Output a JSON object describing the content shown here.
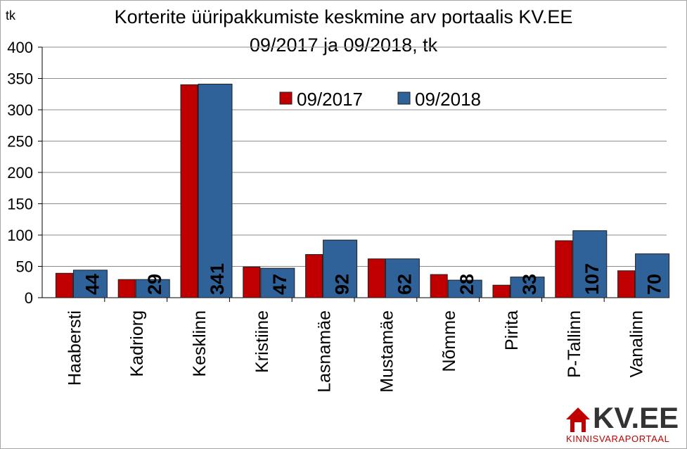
{
  "chart_data": {
    "type": "bar",
    "title": "Korterite üüripakkumiste keskmine arv portaalis KV.EE",
    "subtitle": "09/2017 ja 09/2018, tk",
    "ylabel": "tk",
    "xlabel": "",
    "ylim": [
      0,
      400
    ],
    "yticks": [
      0,
      50,
      100,
      150,
      200,
      250,
      300,
      350,
      400
    ],
    "grid": true,
    "legend_position": "top-center",
    "categories": [
      "Haabersti",
      "Kadriorg",
      "Kesklinn",
      "Kristiine",
      "Lasnamäe",
      "Mustamäe",
      "Nõmme",
      "Pirita",
      "P-Tallinn",
      "Vanalinn"
    ],
    "series": [
      {
        "name": "09/2017",
        "color": "#c00000",
        "values": [
          39,
          29,
          340,
          49,
          69,
          62,
          37,
          20,
          91,
          43
        ]
      },
      {
        "name": "09/2018",
        "color": "#2e6299",
        "values": [
          44,
          29,
          341,
          47,
          92,
          62,
          28,
          33,
          107,
          70
        ],
        "data_labels": true
      }
    ]
  },
  "logo": {
    "text": "KV.EE",
    "subtitle": "KINNISVARAPORTAAL",
    "colors": {
      "house": "#c00000",
      "text": "#333333",
      "subtitle": "#c00000"
    }
  }
}
